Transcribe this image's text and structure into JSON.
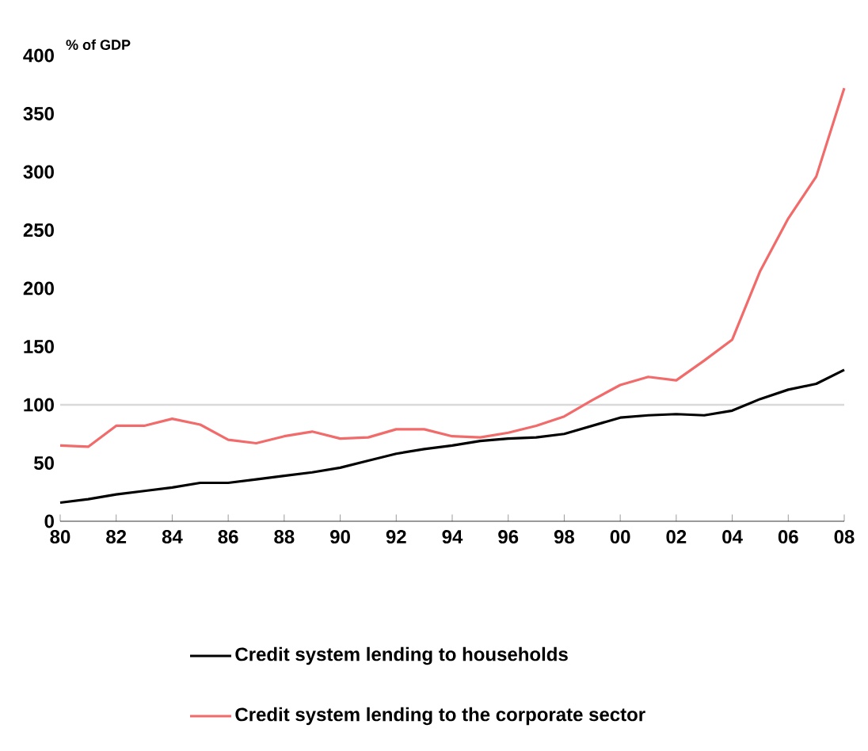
{
  "chart_data": {
    "type": "line",
    "ylabel": "% of GDP",
    "x": [
      1980,
      1981,
      1982,
      1983,
      1984,
      1985,
      1986,
      1987,
      1988,
      1989,
      1990,
      1991,
      1992,
      1993,
      1994,
      1995,
      1996,
      1997,
      1998,
      1999,
      2000,
      2001,
      2002,
      2003,
      2004,
      2005,
      2006,
      2007,
      2008
    ],
    "series": [
      {
        "name": "Credit system lending to households",
        "color": "#000000",
        "values": [
          16,
          19,
          23,
          26,
          29,
          33,
          33,
          36,
          39,
          42,
          46,
          52,
          58,
          62,
          65,
          69,
          71,
          72,
          75,
          82,
          89,
          91,
          92,
          91,
          95,
          105,
          113,
          118,
          130
        ]
      },
      {
        "name": "Credit system lending to the corporate sector",
        "color": "#f26b6b",
        "values": [
          65,
          64,
          82,
          82,
          88,
          83,
          70,
          67,
          73,
          77,
          71,
          72,
          79,
          79,
          73,
          72,
          76,
          82,
          90,
          104,
          117,
          124,
          121,
          138,
          156,
          215,
          260,
          296,
          372
        ]
      }
    ],
    "xlim": [
      1980,
      2008
    ],
    "xticks": [
      {
        "value": 1980,
        "label": "80"
      },
      {
        "value": 1982,
        "label": "82"
      },
      {
        "value": 1984,
        "label": "84"
      },
      {
        "value": 1986,
        "label": "86"
      },
      {
        "value": 1988,
        "label": "88"
      },
      {
        "value": 1990,
        "label": "90"
      },
      {
        "value": 1992,
        "label": "92"
      },
      {
        "value": 1994,
        "label": "94"
      },
      {
        "value": 1996,
        "label": "96"
      },
      {
        "value": 1998,
        "label": "98"
      },
      {
        "value": 2000,
        "label": "00"
      },
      {
        "value": 2002,
        "label": "02"
      },
      {
        "value": 2004,
        "label": "04"
      },
      {
        "value": 2006,
        "label": "06"
      },
      {
        "value": 2008,
        "label": "08"
      }
    ],
    "ylim": [
      0,
      400
    ],
    "yticks": [
      0,
      50,
      100,
      150,
      200,
      250,
      300,
      350,
      400
    ],
    "ref_lines": [
      {
        "axis": "y",
        "value": 100,
        "color": "#d9d9d9"
      }
    ],
    "legend": "bottom",
    "grid": false,
    "marker": "none",
    "line_style": "solid"
  }
}
